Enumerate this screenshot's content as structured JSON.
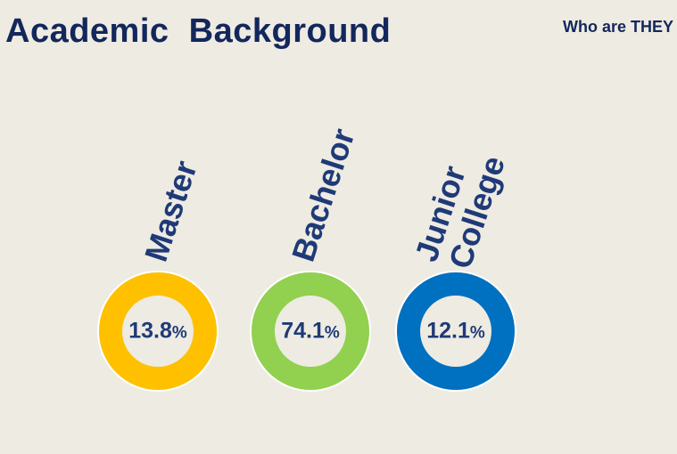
{
  "header": {
    "title": "Academic  Background",
    "tag": "Who are THEY"
  },
  "colors": {
    "title": "#13275c",
    "label": "#1f3a78",
    "master": "#ffc000",
    "bachelor": "#92d050",
    "junior_college": "#0070c0"
  },
  "items": [
    {
      "label": "Master",
      "value": "13.8",
      "unit": "%"
    },
    {
      "label": "Bachelor",
      "value": "74.1",
      "unit": "%"
    },
    {
      "label_line1": "Junior",
      "label_line2": "College",
      "value": "12.1",
      "unit": "%"
    }
  ]
}
